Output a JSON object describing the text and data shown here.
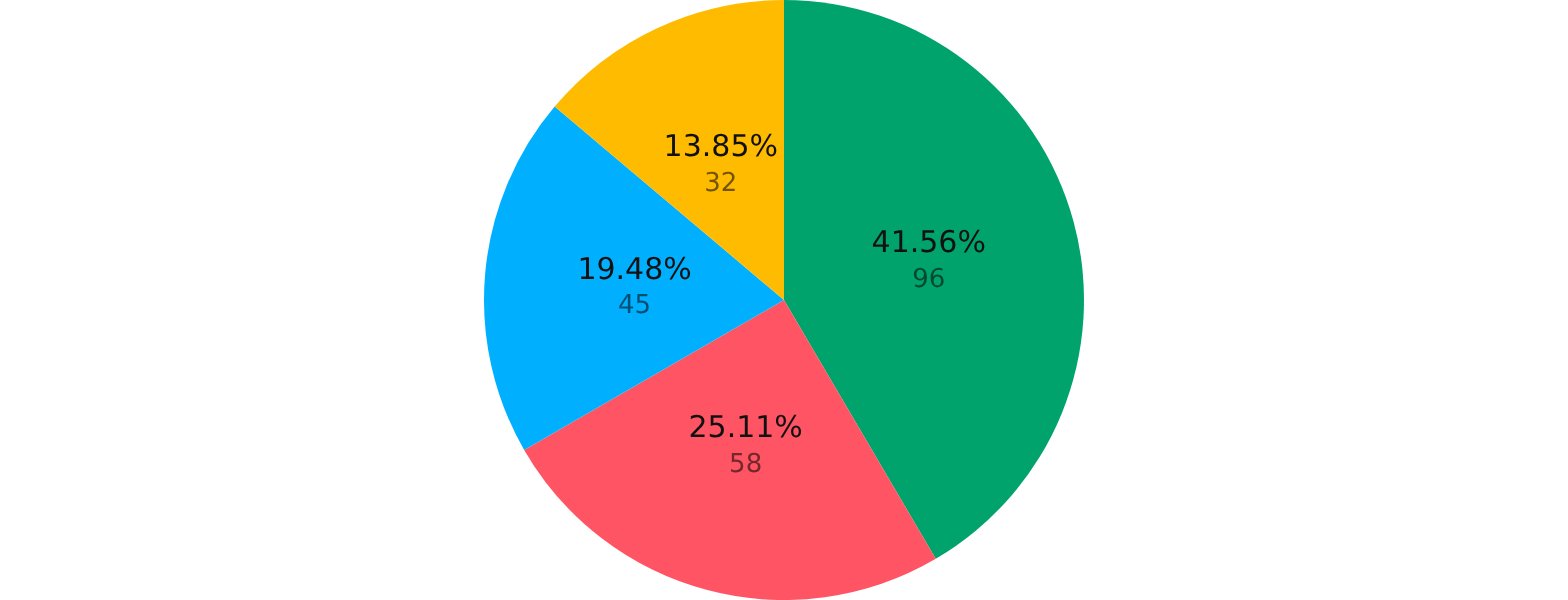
{
  "chart_data": {
    "type": "pie",
    "categories": [
      null,
      null,
      null,
      null
    ],
    "values": [
      41.56,
      25.11,
      19.48,
      13.85
    ],
    "colors": [
      "#00a36c",
      "#ff5463",
      "#00b0ff",
      "#ffbb00"
    ],
    "value_labels": [
      "41.56%\n96",
      "25.11%\n58",
      "19.48%\n45",
      "13.85%\n32"
    ],
    "legend": false
  }
}
